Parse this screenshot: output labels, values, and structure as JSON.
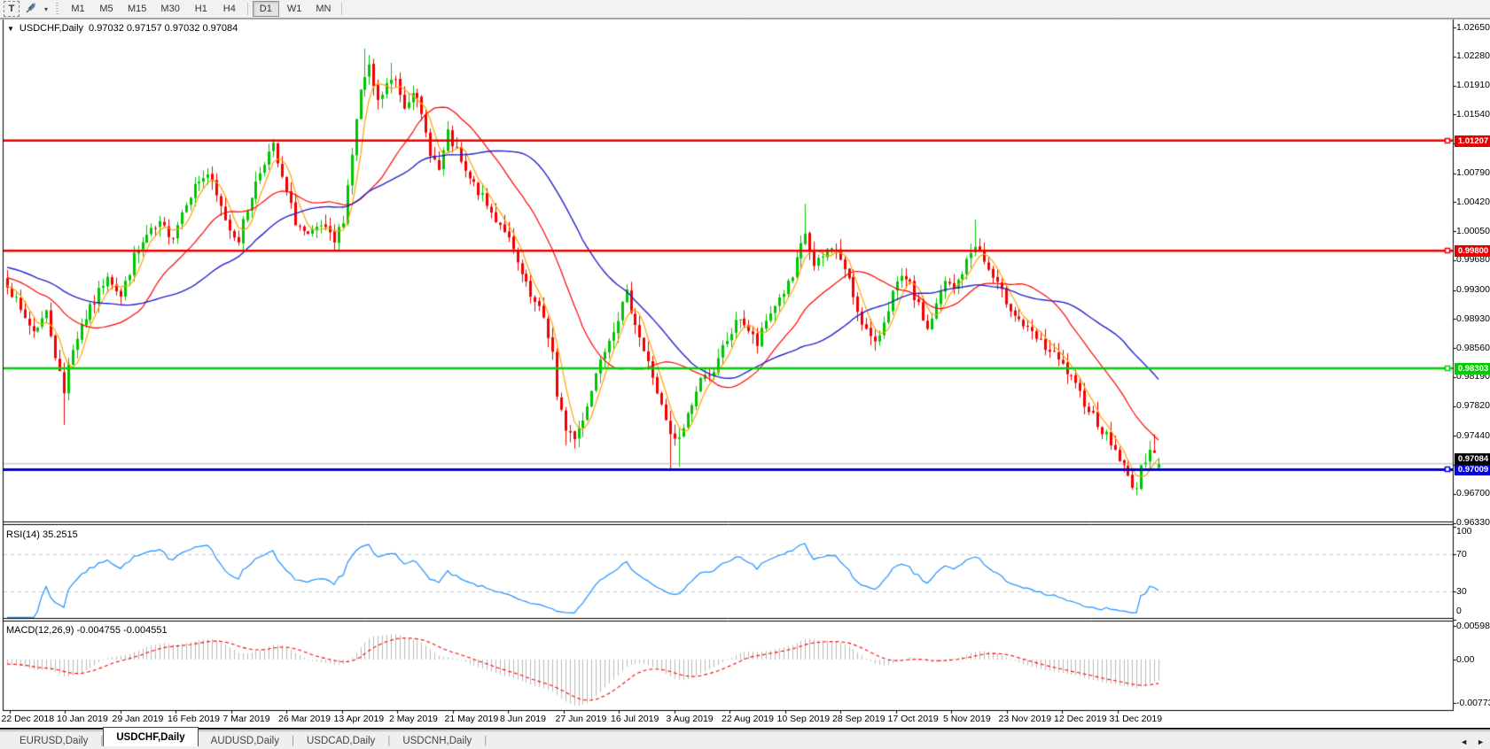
{
  "toolbar": {
    "text_tool": "T",
    "pointer_tool_caret": "▾",
    "timeframes": [
      "M1",
      "M5",
      "M15",
      "M30",
      "H1",
      "H4",
      "D1",
      "W1",
      "MN"
    ],
    "selected_timeframe": "D1"
  },
  "title": {
    "symbol": "USDCHF,Daily",
    "ohlc": "0.97032 0.97157 0.97032 0.97084",
    "dropdown_icon": "▼"
  },
  "price_axis": [
    "1.02650",
    "1.02280",
    "1.01910",
    "1.01540",
    "1.01170",
    "1.00790",
    "1.00420",
    "1.00050",
    "0.99680",
    "0.99300",
    "0.98930",
    "0.98560",
    "0.98190",
    "0.97820",
    "0.97440",
    "0.97070",
    "0.96700",
    "0.96330"
  ],
  "levels": [
    {
      "label": "1.01207",
      "value": 1.01207,
      "color": "#e80000",
      "width": 2.5
    },
    {
      "label": "0.99800",
      "value": 0.998,
      "color": "#e80000",
      "width": 2.5
    },
    {
      "label": "0.98303",
      "value": 0.98303,
      "color": "#00ce00",
      "width": 2.5
    },
    {
      "label": "0.97009",
      "value": 0.97009,
      "color": "#0000dd",
      "width": 3
    }
  ],
  "current_price": {
    "label": "0.97084",
    "value": 0.97084,
    "line_color": "#b4b4b4",
    "tag_bg": "#000000"
  },
  "rsi": {
    "title": "RSI(14) 35.2515",
    "scale": [
      {
        "label": "100",
        "value": 100
      },
      {
        "label": "70",
        "value": 70
      },
      {
        "label": "30",
        "value": 30
      },
      {
        "label": "0",
        "value": 0
      }
    ],
    "levels": [
      70,
      30
    ],
    "line_color": "#1e90ff",
    "last_value": 35.2515
  },
  "macd": {
    "title": "MACD(12,26,9) -0.004755 -0.004551",
    "scale": [
      {
        "label": "0.005986",
        "value": 0.005986
      },
      {
        "label": "0.00",
        "value": 0
      },
      {
        "label": "-0.007737",
        "value": -0.007737
      }
    ],
    "histogram_color": "#b9b9b9",
    "signal_color": "#ff0000",
    "last_values": [
      -0.004755,
      -0.004551
    ]
  },
  "date_axis": [
    "22 Dec 2018",
    "10 Jan 2019",
    "29 Jan 2019",
    "16 Feb 2019",
    "7 Mar 2019",
    "26 Mar 2019",
    "13 Apr 2019",
    "2 May 2019",
    "21 May 2019",
    "8 Jun 2019",
    "27 Jun 2019",
    "16 Jul 2019",
    "3 Aug 2019",
    "22 Aug 2019",
    "10 Sep 2019",
    "28 Sep 2019",
    "17 Oct 2019",
    "5 Nov 2019",
    "23 Nov 2019",
    "12 Dec 2019",
    "31 Dec 2019"
  ],
  "tabs": [
    {
      "label": "EURUSD,Daily",
      "active": false
    },
    {
      "label": "USDCHF,Daily",
      "active": true
    },
    {
      "label": "AUDUSD,Daily",
      "active": false
    },
    {
      "label": "USDCAD,Daily",
      "active": false
    },
    {
      "label": "USDCNH,Daily",
      "active": false
    }
  ],
  "tab_scroll": {
    "left": "◄",
    "right": "►"
  },
  "colors": {
    "candle_up": "#00c400",
    "candle_down": "#f20000",
    "ma_fast": "#ffa200",
    "ma_mid": "#ff0000",
    "ma_slow": "#2222cc",
    "pane_border": "#000000",
    "rsi_level_dash": "#c9c9c9"
  },
  "chart_data": {
    "type": "candlestick",
    "symbol": "USDCHF",
    "timeframe": "Daily",
    "bars": 265,
    "y_range": [
      0.9633,
      1.0265
    ],
    "x_labels": [
      "22 Dec 2018",
      "10 Jan 2019",
      "29 Jan 2019",
      "16 Feb 2019",
      "7 Mar 2019",
      "26 Mar 2019",
      "13 Apr 2019",
      "2 May 2019",
      "21 May 2019",
      "8 Jun 2019",
      "27 Jun 2019",
      "16 Jul 2019",
      "3 Aug 2019",
      "22 Aug 2019",
      "10 Sep 2019",
      "28 Sep 2019",
      "17 Oct 2019",
      "5 Nov 2019",
      "23 Nov 2019",
      "12 Dec 2019",
      "31 Dec 2019"
    ],
    "close_waypoints": [
      [
        0,
        0.994
      ],
      [
        3,
        0.9902
      ],
      [
        6,
        0.9878
      ],
      [
        9,
        0.9901
      ],
      [
        11,
        0.9848
      ],
      [
        13,
        0.9798
      ],
      [
        14,
        0.984
      ],
      [
        17,
        0.9886
      ],
      [
        20,
        0.9915
      ],
      [
        23,
        0.9952
      ],
      [
        26,
        0.9921
      ],
      [
        29,
        0.9972
      ],
      [
        32,
        0.9998
      ],
      [
        35,
        1.0012
      ],
      [
        38,
        1.0
      ],
      [
        41,
        1.0045
      ],
      [
        44,
        1.007
      ],
      [
        46,
        1.0078
      ],
      [
        48,
        1.0048
      ],
      [
        51,
        1.0008
      ],
      [
        53,
        0.9996
      ],
      [
        56,
        1.0052
      ],
      [
        59,
        1.0096
      ],
      [
        61,
        1.0112
      ],
      [
        63,
        1.007
      ],
      [
        66,
        1.0018
      ],
      [
        69,
        0.9996
      ],
      [
        72,
        1.0011
      ],
      [
        75,
        0.999
      ],
      [
        77,
        1.0022
      ],
      [
        79,
        1.0105
      ],
      [
        81,
        1.0185
      ],
      [
        83,
        1.0211
      ],
      [
        85,
        1.0168
      ],
      [
        87,
        1.0192
      ],
      [
        89,
        1.0198
      ],
      [
        91,
        1.0165
      ],
      [
        93,
        1.0188
      ],
      [
        95,
        1.015
      ],
      [
        97,
        1.0108
      ],
      [
        99,
        1.0082
      ],
      [
        101,
        1.0128
      ],
      [
        103,
        1.0105
      ],
      [
        105,
        1.0078
      ],
      [
        108,
        1.0056
      ],
      [
        111,
        1.0028
      ],
      [
        114,
        1.0008
      ],
      [
        117,
        0.9962
      ],
      [
        120,
        0.992
      ],
      [
        123,
        0.9895
      ],
      [
        125,
        0.985
      ],
      [
        126,
        0.979
      ],
      [
        128,
        0.9755
      ],
      [
        130,
        0.974
      ],
      [
        132,
        0.9768
      ],
      [
        134,
        0.9802
      ],
      [
        136,
        0.9846
      ],
      [
        138,
        0.987
      ],
      [
        140,
        0.9896
      ],
      [
        142,
        0.9924
      ],
      [
        144,
        0.989
      ],
      [
        146,
        0.9852
      ],
      [
        148,
        0.982
      ],
      [
        150,
        0.978
      ],
      [
        152,
        0.9742
      ],
      [
        154,
        0.9738
      ],
      [
        156,
        0.9772
      ],
      [
        158,
        0.98
      ],
      [
        160,
        0.9828
      ],
      [
        162,
        0.9821
      ],
      [
        164,
        0.9856
      ],
      [
        166,
        0.9876
      ],
      [
        168,
        0.9896
      ],
      [
        170,
        0.9878
      ],
      [
        172,
        0.986
      ],
      [
        174,
        0.989
      ],
      [
        176,
        0.9912
      ],
      [
        178,
        0.9928
      ],
      [
        180,
        0.9945
      ],
      [
        182,
        0.9985
      ],
      [
        183,
        1.0002
      ],
      [
        185,
        0.9958
      ],
      [
        187,
        0.9972
      ],
      [
        189,
        0.9988
      ],
      [
        191,
        0.997
      ],
      [
        193,
        0.994
      ],
      [
        195,
        0.9905
      ],
      [
        197,
        0.9878
      ],
      [
        199,
        0.9858
      ],
      [
        201,
        0.9892
      ],
      [
        203,
        0.9926
      ],
      [
        205,
        0.9944
      ],
      [
        207,
        0.9934
      ],
      [
        209,
        0.9908
      ],
      [
        211,
        0.988
      ],
      [
        213,
        0.991
      ],
      [
        215,
        0.994
      ],
      [
        217,
        0.993
      ],
      [
        220,
        0.9965
      ],
      [
        222,
        0.999
      ],
      [
        225,
        0.9955
      ],
      [
        228,
        0.9925
      ],
      [
        231,
        0.99
      ],
      [
        234,
        0.9878
      ],
      [
        237,
        0.9862
      ],
      [
        240,
        0.9846
      ],
      [
        243,
        0.9825
      ],
      [
        245,
        0.9805
      ],
      [
        247,
        0.9788
      ],
      [
        249,
        0.977
      ],
      [
        251,
        0.9752
      ],
      [
        253,
        0.9735
      ],
      [
        255,
        0.9715
      ],
      [
        257,
        0.969
      ],
      [
        259,
        0.9678
      ],
      [
        260,
        0.97
      ],
      [
        261,
        0.9716
      ],
      [
        262,
        0.9732
      ],
      [
        263,
        0.9724
      ],
      [
        264,
        0.9708
      ]
    ],
    "spikes": {
      "13": {
        "low": 0.9758
      },
      "82": {
        "high": 1.0238
      },
      "83": {
        "high": 1.023
      },
      "88": {
        "high": 1.022
      },
      "128": {
        "low": 0.9732
      },
      "130": {
        "low": 0.9728
      },
      "152": {
        "low": 0.9702
      },
      "154": {
        "low": 0.9705
      },
      "183": {
        "high": 1.004
      },
      "222": {
        "high": 1.002
      },
      "259": {
        "low": 0.9668
      },
      "263": {
        "high": 0.9746
      }
    },
    "last_bar": {
      "open": 0.97032,
      "high": 0.97157,
      "low": 0.97032,
      "close": 0.97084
    },
    "overlays": [
      {
        "name": "ma-fast",
        "type": "sma",
        "period": 5,
        "color": "#ffa200"
      },
      {
        "name": "ma-mid",
        "type": "sma",
        "period": 21,
        "color": "#ff0000"
      },
      {
        "name": "ma-slow",
        "type": "sma",
        "period": 42,
        "color": "#2222cc"
      }
    ],
    "indicators": [
      {
        "name": "RSI",
        "params": [
          14
        ],
        "last": 35.2515,
        "range": [
          0,
          100
        ],
        "levels": [
          70,
          30
        ]
      },
      {
        "name": "MACD",
        "params": [
          12,
          26,
          9
        ],
        "last_macd": -0.004755,
        "last_signal": -0.004551,
        "scale_top": 0.005986,
        "scale_bottom": -0.007737
      }
    ]
  }
}
